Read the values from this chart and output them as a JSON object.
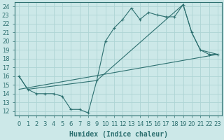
{
  "xlabel": "Humidex (Indice chaleur)",
  "xlim": [
    -0.5,
    23.5
  ],
  "ylim": [
    11.5,
    24.5
  ],
  "xticks": [
    0,
    1,
    2,
    3,
    4,
    5,
    6,
    7,
    8,
    9,
    10,
    11,
    12,
    13,
    14,
    15,
    16,
    17,
    18,
    19,
    20,
    21,
    22,
    23
  ],
  "yticks": [
    12,
    13,
    14,
    15,
    16,
    17,
    18,
    19,
    20,
    21,
    22,
    23,
    24
  ],
  "background_color": "#cce8e8",
  "line_color": "#2d7070",
  "grid_color": "#aed4d4",
  "line1_x": [
    0,
    1,
    2,
    3,
    4,
    5,
    6,
    7,
    8,
    9,
    10,
    11,
    12,
    13,
    14,
    15,
    16,
    17,
    18,
    19,
    20,
    21,
    22,
    23
  ],
  "line1_y": [
    16.0,
    14.5,
    14.0,
    14.0,
    14.0,
    13.7,
    12.2,
    12.2,
    11.8,
    15.5,
    20.0,
    21.5,
    22.5,
    23.8,
    22.5,
    23.3,
    23.0,
    22.8,
    22.8,
    24.2,
    21.0,
    19.0,
    18.5,
    18.5
  ],
  "line2_x": [
    0,
    1,
    9,
    19,
    20,
    21,
    23
  ],
  "line2_y": [
    16.0,
    14.5,
    15.5,
    24.2,
    21.0,
    19.0,
    18.5
  ],
  "line3_x": [
    0,
    23
  ],
  "line3_y": [
    14.5,
    18.5
  ],
  "font_size": 7,
  "tick_font_size": 6
}
